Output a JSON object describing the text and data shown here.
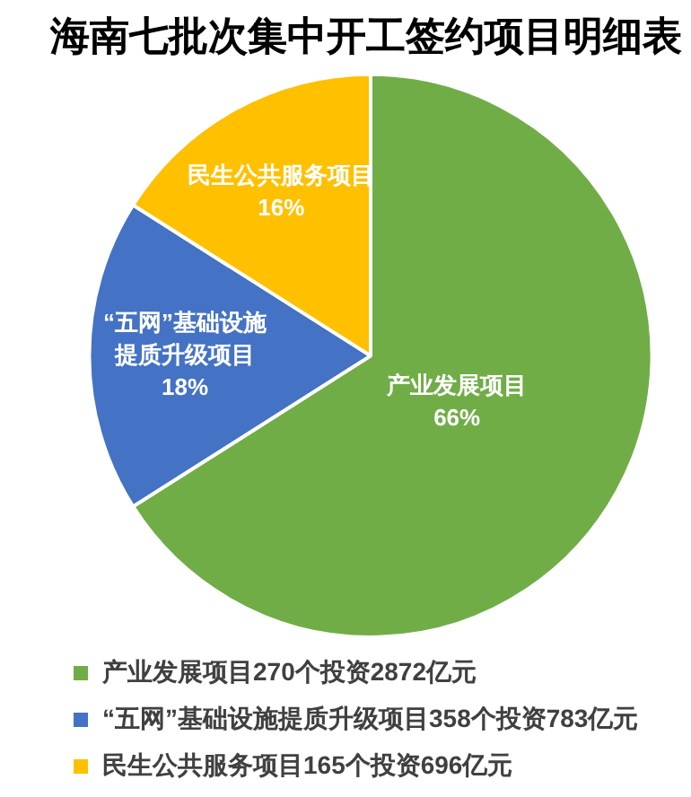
{
  "chart_data": {
    "type": "pie",
    "title": "海南七批次集中开工签约项目明细表",
    "categories": [
      "产业发展项目270个投资2872亿元",
      "“五网”基础设施提质升级项目358个投资783亿元",
      "民生公共服务项目165个投资696亿元"
    ],
    "values": [
      66,
      18,
      16
    ],
    "colors": [
      "#70ad47",
      "#4472c4",
      "#ffc000"
    ],
    "value_labels": [
      "产业发展项目\n66%",
      "“五网”基础设施提质升级项目\n18%",
      "民生公共服务项目\n16%"
    ],
    "legend": "bottom"
  }
}
